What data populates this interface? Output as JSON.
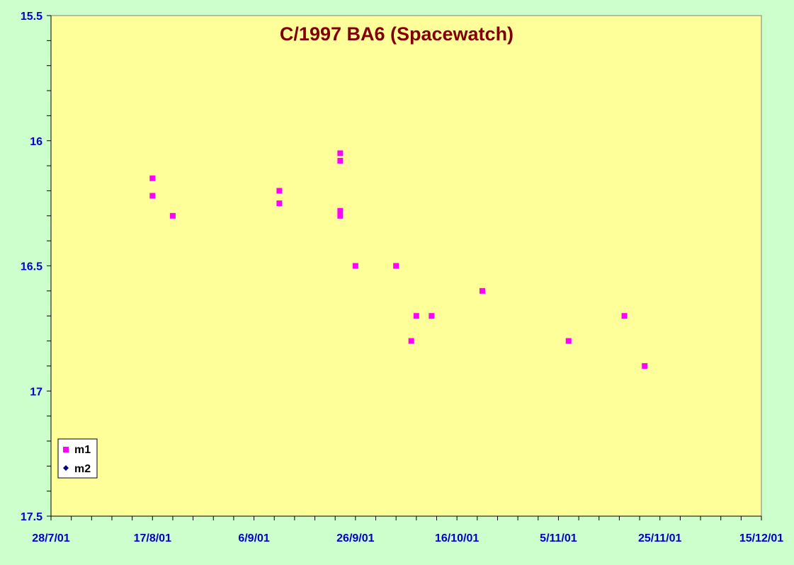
{
  "chart_data": {
    "type": "scatter",
    "title": "C/1997 BA6 (Spacewatch)",
    "xlabel": "",
    "ylabel": "",
    "x_axis": {
      "type": "date",
      "range": [
        "2001-07-28",
        "2001-12-15"
      ],
      "tick_labels": [
        "28/7/01",
        "17/8/01",
        "6/9/01",
        "26/9/01",
        "16/10/01",
        "5/11/01",
        "25/11/01",
        "15/12/01"
      ],
      "tick_dates": [
        "2001-07-28",
        "2001-08-17",
        "2001-09-06",
        "2001-09-26",
        "2001-10-16",
        "2001-11-05",
        "2001-11-25",
        "2001-12-15"
      ],
      "minor_tick_days": 4
    },
    "y_axis": {
      "reversed": true,
      "ylim": [
        15.5,
        17.5
      ],
      "tick_values": [
        15.5,
        16,
        16.5,
        17,
        17.5
      ],
      "tick_labels": [
        "15.5",
        "16",
        "16.5",
        "17",
        "17.5"
      ],
      "minor_step": 0.1
    },
    "grid": false,
    "legend_position": "bottom-left",
    "colors": {
      "page_background": "#ccffcc",
      "plot_background": "#ffff99",
      "title": "#800000",
      "tick_labels": "#0000cc",
      "m1": "#ff00ff",
      "m2": "#000080"
    },
    "series": [
      {
        "name": "m1",
        "marker": "square",
        "points": [
          {
            "x": "2001-08-17",
            "y": 16.15
          },
          {
            "x": "2001-08-17",
            "y": 16.22
          },
          {
            "x": "2001-08-21",
            "y": 16.3
          },
          {
            "x": "2001-09-11",
            "y": 16.2
          },
          {
            "x": "2001-09-11",
            "y": 16.25
          },
          {
            "x": "2001-09-23",
            "y": 16.05
          },
          {
            "x": "2001-09-23",
            "y": 16.08
          },
          {
            "x": "2001-09-23",
            "y": 16.28
          },
          {
            "x": "2001-09-23",
            "y": 16.3
          },
          {
            "x": "2001-09-26",
            "y": 16.5
          },
          {
            "x": "2001-10-04",
            "y": 16.5
          },
          {
            "x": "2001-10-07",
            "y": 16.8
          },
          {
            "x": "2001-10-08",
            "y": 16.7
          },
          {
            "x": "2001-10-11",
            "y": 16.7
          },
          {
            "x": "2001-10-21",
            "y": 16.6
          },
          {
            "x": "2001-11-07",
            "y": 16.8
          },
          {
            "x": "2001-11-18",
            "y": 16.7
          },
          {
            "x": "2001-11-22",
            "y": 16.9
          }
        ]
      },
      {
        "name": "m2",
        "marker": "diamond",
        "points": []
      }
    ]
  }
}
